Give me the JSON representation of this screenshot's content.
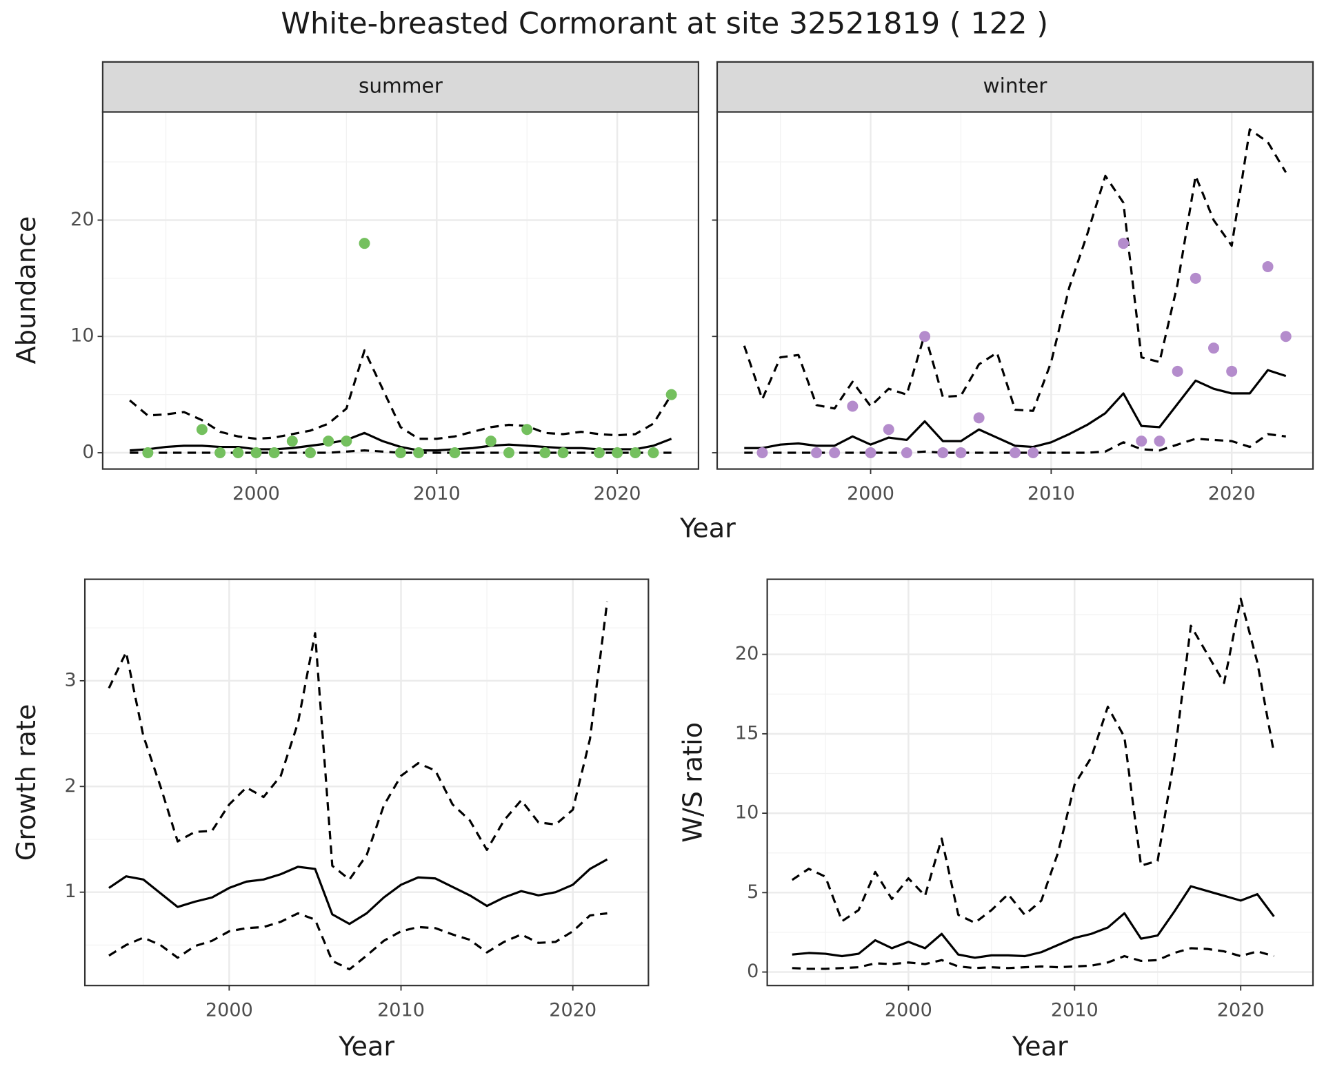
{
  "title": "White-breasted Cormorant at site 32521819 ( 122 )",
  "abundance_axes": {
    "ylabel": "Abundance",
    "xlabel": "Year"
  },
  "chart_data": [
    {
      "type": "line",
      "facet": "summer",
      "x": [
        1993,
        1994,
        1995,
        1996,
        1997,
        1998,
        1999,
        2000,
        2001,
        2002,
        2003,
        2004,
        2005,
        2006,
        2007,
        2008,
        2009,
        2010,
        2011,
        2012,
        2013,
        2014,
        2015,
        2016,
        2017,
        2018,
        2019,
        2020,
        2021,
        2022,
        2023
      ],
      "series": [
        {
          "color": "#000000",
          "style": "solid",
          "values": [
            0.2,
            0.3,
            0.5,
            0.6,
            0.6,
            0.5,
            0.5,
            0.3,
            0.3,
            0.4,
            0.6,
            0.8,
            1.1,
            1.7,
            1.0,
            0.5,
            0.2,
            0.2,
            0.3,
            0.4,
            0.6,
            0.7,
            0.6,
            0.5,
            0.4,
            0.4,
            0.3,
            0.3,
            0.3,
            0.6,
            1.2
          ]
        },
        {
          "color": "#000000",
          "style": "dashed",
          "values": [
            0,
            0,
            0,
            0,
            0,
            0,
            0,
            0,
            0,
            0,
            0,
            0,
            0.1,
            0.2,
            0.1,
            0,
            0,
            0,
            0,
            0,
            0,
            0,
            0,
            0,
            0,
            0,
            0,
            0,
            0,
            0,
            0
          ]
        },
        {
          "color": "#000000",
          "style": "dashed",
          "values": [
            4.5,
            3.2,
            3.3,
            3.5,
            2.8,
            1.8,
            1.4,
            1.2,
            1.3,
            1.6,
            1.9,
            2.5,
            3.8,
            8.8,
            5.5,
            2.2,
            1.2,
            1.2,
            1.4,
            1.8,
            2.2,
            2.4,
            2.3,
            1.7,
            1.6,
            1.8,
            1.6,
            1.5,
            1.6,
            2.5,
            5.0
          ]
        },
        {
          "color": "#74c05e",
          "style": "point",
          "x": [
            1994,
            1997,
            1998,
            1999,
            2000,
            2001,
            2002,
            2003,
            2004,
            2005,
            2006,
            2008,
            2009,
            2011,
            2013,
            2014,
            2015,
            2016,
            2017,
            2019,
            2020,
            2021,
            2022,
            2023
          ],
          "values": [
            0,
            2,
            0,
            0,
            0,
            0,
            1,
            0,
            1,
            1,
            18,
            0,
            0,
            0,
            1,
            0,
            2,
            0,
            0,
            0,
            0,
            0,
            0,
            5
          ]
        }
      ],
      "xlim": [
        1991.5,
        2024.5
      ],
      "ylim": [
        -1.4,
        29.3
      ],
      "xticks": [
        2000,
        2010,
        2020
      ],
      "yticks": [
        0,
        10,
        20
      ],
      "xminor": [
        1995,
        2005,
        2015
      ],
      "yminor": [
        5,
        15,
        25
      ],
      "grid": true
    },
    {
      "type": "line",
      "facet": "winter",
      "x": [
        1993,
        1994,
        1995,
        1996,
        1997,
        1998,
        1999,
        2000,
        2001,
        2002,
        2003,
        2004,
        2005,
        2006,
        2007,
        2008,
        2009,
        2010,
        2011,
        2012,
        2013,
        2014,
        2015,
        2016,
        2017,
        2018,
        2019,
        2020,
        2021,
        2022,
        2023
      ],
      "series": [
        {
          "color": "#000000",
          "style": "solid",
          "values": [
            0.4,
            0.4,
            0.7,
            0.8,
            0.6,
            0.6,
            1.4,
            0.7,
            1.3,
            1.1,
            2.7,
            1.0,
            1.0,
            2.0,
            1.3,
            0.6,
            0.5,
            0.9,
            1.6,
            2.4,
            3.4,
            5.1,
            2.3,
            2.2,
            4.2,
            6.2,
            5.5,
            5.1,
            5.1,
            7.1,
            6.6
          ]
        },
        {
          "color": "#000000",
          "style": "dashed",
          "values": [
            0,
            0,
            0,
            0,
            0,
            0,
            0,
            0,
            0,
            0,
            0.1,
            0,
            0,
            0,
            0,
            0,
            0,
            0,
            0,
            0,
            0.1,
            0.9,
            0.3,
            0.2,
            0.7,
            1.2,
            1.1,
            1.0,
            0.5,
            1.6,
            1.4
          ]
        },
        {
          "color": "#000000",
          "style": "dashed",
          "values": [
            9.2,
            4.6,
            8.2,
            8.4,
            4.1,
            3.8,
            6.1,
            4.0,
            5.5,
            5.0,
            10.2,
            4.8,
            4.9,
            7.6,
            8.6,
            3.7,
            3.6,
            7.8,
            14.2,
            18.8,
            23.8,
            21.5,
            8.2,
            7.8,
            14.5,
            23.8,
            20.0,
            17.8,
            27.8,
            26.7,
            24.1
          ]
        },
        {
          "color": "#b48ccc",
          "style": "point",
          "x": [
            1994,
            1997,
            1998,
            1999,
            2000,
            2001,
            2002,
            2003,
            2004,
            2005,
            2006,
            2008,
            2009,
            2014,
            2015,
            2016,
            2017,
            2018,
            2019,
            2020,
            2022,
            2023
          ],
          "values": [
            0,
            0,
            0,
            4,
            0,
            2,
            0,
            10,
            0,
            0,
            3,
            0,
            0,
            18,
            1,
            1,
            7,
            15,
            9,
            7,
            16,
            10
          ]
        }
      ],
      "xlim": [
        1991.5,
        2024.5
      ],
      "ylim": [
        -1.4,
        29.3
      ],
      "xticks": [
        2000,
        2010,
        2020
      ],
      "yticks": [
        0,
        10,
        20
      ],
      "xminor": [
        1995,
        2005,
        2015
      ],
      "yminor": [
        5,
        15,
        25
      ],
      "grid": true
    },
    {
      "type": "line",
      "xlabel": "Year",
      "ylabel": "Growth rate",
      "x": [
        1993,
        1994,
        1995,
        1996,
        1997,
        1998,
        1999,
        2000,
        2001,
        2002,
        2003,
        2004,
        2005,
        2006,
        2007,
        2008,
        2009,
        2010,
        2011,
        2012,
        2013,
        2014,
        2015,
        2016,
        2017,
        2018,
        2019,
        2020,
        2021,
        2022
      ],
      "series": [
        {
          "color": "#000000",
          "style": "solid",
          "values": [
            1.04,
            1.15,
            1.12,
            0.99,
            0.86,
            0.91,
            0.95,
            1.04,
            1.1,
            1.12,
            1.17,
            1.24,
            1.22,
            0.79,
            0.7,
            0.8,
            0.95,
            1.07,
            1.14,
            1.13,
            1.05,
            0.97,
            0.87,
            0.95,
            1.01,
            0.97,
            1.0,
            1.07,
            1.22,
            1.31
          ]
        },
        {
          "color": "#000000",
          "style": "dashed",
          "values": [
            0.4,
            0.5,
            0.57,
            0.5,
            0.38,
            0.49,
            0.54,
            0.63,
            0.66,
            0.67,
            0.72,
            0.8,
            0.74,
            0.35,
            0.27,
            0.4,
            0.54,
            0.63,
            0.67,
            0.66,
            0.6,
            0.55,
            0.43,
            0.53,
            0.6,
            0.52,
            0.53,
            0.63,
            0.78,
            0.8
          ]
        },
        {
          "color": "#000000",
          "style": "dashed",
          "values": [
            2.93,
            3.27,
            2.48,
            2.0,
            1.48,
            1.57,
            1.58,
            1.83,
            1.99,
            1.9,
            2.1,
            2.6,
            3.45,
            1.25,
            1.12,
            1.35,
            1.82,
            2.1,
            2.22,
            2.15,
            1.83,
            1.68,
            1.4,
            1.68,
            1.87,
            1.66,
            1.64,
            1.78,
            2.45,
            3.75
          ]
        }
      ],
      "xlim": [
        1991.6,
        2024.4
      ],
      "ylim": [
        0.117,
        3.96
      ],
      "xticks": [
        2000,
        2010,
        2020
      ],
      "yticks": [
        1,
        2,
        3
      ],
      "xminor": [
        1995,
        2005,
        2015
      ],
      "yminor": [
        0.5,
        1.5,
        2.5,
        3.5
      ],
      "grid": true
    },
    {
      "type": "line",
      "xlabel": "Year",
      "ylabel": "W/S ratio",
      "x": [
        1993,
        1994,
        1995,
        1996,
        1997,
        1998,
        1999,
        2000,
        2001,
        2002,
        2003,
        2004,
        2005,
        2006,
        2007,
        2008,
        2009,
        2010,
        2011,
        2012,
        2013,
        2014,
        2015,
        2016,
        2017,
        2018,
        2019,
        2020,
        2021,
        2022
      ],
      "series": [
        {
          "color": "#000000",
          "style": "solid",
          "values": [
            1.1,
            1.2,
            1.15,
            1.0,
            1.15,
            2.0,
            1.5,
            1.9,
            1.5,
            2.4,
            1.1,
            0.9,
            1.05,
            1.05,
            1.0,
            1.25,
            1.7,
            2.15,
            2.4,
            2.8,
            3.7,
            2.1,
            2.3,
            3.8,
            5.4,
            5.1,
            4.8,
            4.5,
            4.9,
            3.5
          ]
        },
        {
          "color": "#000000",
          "style": "dashed",
          "values": [
            0.25,
            0.2,
            0.2,
            0.25,
            0.3,
            0.55,
            0.5,
            0.6,
            0.5,
            0.75,
            0.35,
            0.25,
            0.3,
            0.25,
            0.3,
            0.35,
            0.3,
            0.35,
            0.4,
            0.6,
            1.0,
            0.7,
            0.75,
            1.2,
            1.5,
            1.45,
            1.3,
            1.0,
            1.3,
            1.0
          ]
        },
        {
          "color": "#000000",
          "style": "dashed",
          "values": [
            5.8,
            6.5,
            6.0,
            3.2,
            3.9,
            6.3,
            4.6,
            5.9,
            4.8,
            8.4,
            3.6,
            3.1,
            3.9,
            4.9,
            3.6,
            4.5,
            7.5,
            11.8,
            13.5,
            16.7,
            14.8,
            6.7,
            7.0,
            13.5,
            21.8,
            20.0,
            18.2,
            23.5,
            19.5,
            13.8
          ]
        }
      ],
      "xlim": [
        1991.5,
        2024.35
      ],
      "ylim": [
        -0.85,
        24.73
      ],
      "xticks": [
        2000,
        2010,
        2020
      ],
      "yticks": [
        0,
        5,
        10,
        15,
        20
      ],
      "xminor": [
        1995,
        2005,
        2015
      ],
      "yminor": [
        2.5,
        7.5,
        12.5,
        17.5,
        22.5
      ],
      "grid": true
    }
  ]
}
